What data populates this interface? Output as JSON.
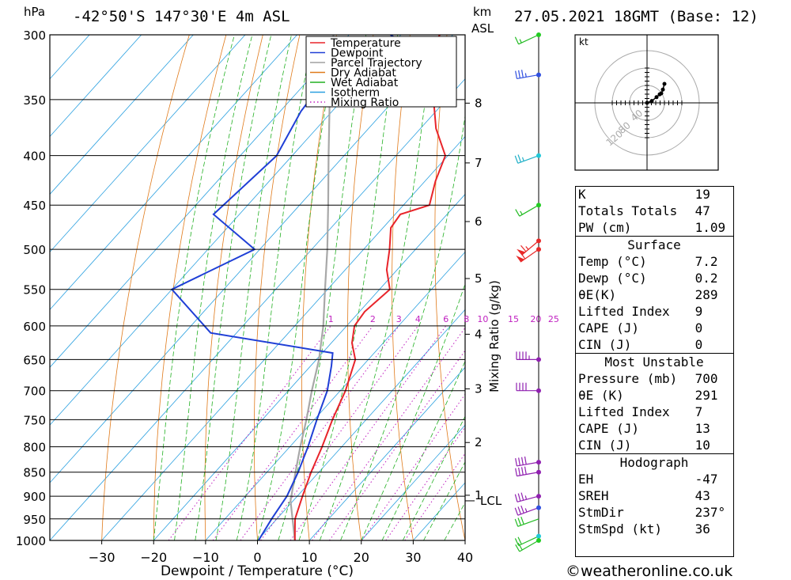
{
  "header": {
    "hpa_label": "hPa",
    "location": "-42°50'S 147°30'E 4m ASL",
    "km_label": "km",
    "asl_label": "ASL",
    "datetime": "27.05.2021 18GMT (Base: 12)"
  },
  "chart_data": {
    "type": "line",
    "subtype": "skew-t log-p sounding",
    "xlabel": "Dewpoint / Temperature (°C)",
    "ylabel": "hPa",
    "y2label": "Mixing Ratio (g/kg)",
    "x_ticks": [
      -30,
      -20,
      -10,
      0,
      10,
      20,
      30,
      40
    ],
    "xlim": [
      -40,
      40
    ],
    "ylim": [
      1000,
      300
    ],
    "y_scale": "log",
    "pressure_ticks": [
      300,
      350,
      400,
      450,
      500,
      550,
      600,
      650,
      700,
      750,
      800,
      850,
      900,
      950,
      1000
    ],
    "km_ticks": [
      {
        "km": "1",
        "p": 898
      },
      {
        "km": "2",
        "p": 792
      },
      {
        "km": "3",
        "p": 697
      },
      {
        "km": "4",
        "p": 612
      },
      {
        "km": "5",
        "p": 536
      },
      {
        "km": "6",
        "p": 468
      },
      {
        "km": "7",
        "p": 407
      },
      {
        "km": "8",
        "p": 353
      }
    ],
    "lcl": {
      "label": "LCL",
      "p": 910
    },
    "mixing_ratio_labels": [
      "1",
      "2",
      "3",
      "4",
      "6",
      "8",
      "10",
      "15",
      "20",
      "25"
    ],
    "mixing_ratio_values": [
      1,
      2,
      3,
      4,
      6,
      8,
      10,
      15,
      20,
      25
    ],
    "legend": {
      "placement": "top-center",
      "entries": [
        {
          "name": "Temperature",
          "color": "#e8242a",
          "style": "solid"
        },
        {
          "name": "Dewpoint",
          "color": "#1f3fd6",
          "style": "solid"
        },
        {
          "name": "Parcel Trajectory",
          "color": "#a0a0a0",
          "style": "solid"
        },
        {
          "name": "Dry Adiabat",
          "color": "#e07a1a",
          "style": "solid"
        },
        {
          "name": "Wet Adiabat",
          "color": "#22b022",
          "style": "solid"
        },
        {
          "name": "Isotherm",
          "color": "#2aa0e0",
          "style": "solid"
        },
        {
          "name": "Mixing Ratio",
          "color": "#c020c0",
          "style": "dotted"
        }
      ]
    },
    "series": [
      {
        "name": "Temperature",
        "points": [
          [
            1000,
            7.2
          ],
          [
            950,
            3.5
          ],
          [
            900,
            1.0
          ],
          [
            850,
            -1.5
          ],
          [
            800,
            -3.8
          ],
          [
            750,
            -6.5
          ],
          [
            700,
            -9.0
          ],
          [
            650,
            -12.5
          ],
          [
            625,
            -16.0
          ],
          [
            600,
            -18.5
          ],
          [
            580,
            -19.0
          ],
          [
            550,
            -18.0
          ],
          [
            525,
            -22.0
          ],
          [
            500,
            -25.0
          ],
          [
            475,
            -28.5
          ],
          [
            460,
            -29.0
          ],
          [
            450,
            -25.0
          ],
          [
            425,
            -28.0
          ],
          [
            400,
            -30.5
          ],
          [
            375,
            -37.0
          ],
          [
            350,
            -42.5
          ],
          [
            325,
            -48.0
          ],
          [
            310,
            -52.0
          ],
          [
            300,
            -52.5
          ]
        ]
      },
      {
        "name": "Dewpoint",
        "points": [
          [
            1000,
            0.2
          ],
          [
            950,
            -1.0
          ],
          [
            900,
            -2.0
          ],
          [
            850,
            -4.0
          ],
          [
            800,
            -6.5
          ],
          [
            750,
            -9.5
          ],
          [
            700,
            -12.5
          ],
          [
            660,
            -16.0
          ],
          [
            640,
            -18.0
          ],
          [
            610,
            -45.0
          ],
          [
            550,
            -60.0
          ],
          [
            500,
            -51.0
          ],
          [
            460,
            -65.0
          ],
          [
            400,
            -63.0
          ],
          [
            360,
            -66.0
          ],
          [
            345,
            -66.5
          ],
          [
            320,
            -53.0
          ],
          [
            310,
            -55.5
          ],
          [
            300,
            -62.0
          ]
        ]
      },
      {
        "name": "Parcel Trajectory",
        "points": [
          [
            1000,
            7.2
          ],
          [
            910,
            -0.5
          ],
          [
            850,
            -4.5
          ],
          [
            800,
            -8.0
          ],
          [
            750,
            -11.5
          ],
          [
            700,
            -15.5
          ],
          [
            650,
            -19.5
          ],
          [
            600,
            -24.5
          ],
          [
            550,
            -30.5
          ],
          [
            500,
            -37.0
          ],
          [
            450,
            -44.5
          ],
          [
            400,
            -53.0
          ],
          [
            350,
            -62.5
          ],
          [
            300,
            -73.0
          ]
        ]
      }
    ],
    "wind_barbs": [
      {
        "p": 1000,
        "dir": 240,
        "speed": 20
      },
      {
        "p": 990,
        "dir": 245,
        "speed": 20
      },
      {
        "p": 950,
        "dir": 250,
        "speed": 30
      },
      {
        "p": 925,
        "dir": 250,
        "speed": 35
      },
      {
        "p": 900,
        "dir": 255,
        "speed": 35
      },
      {
        "p": 850,
        "dir": 260,
        "speed": 40
      },
      {
        "p": 830,
        "dir": 260,
        "speed": 40
      },
      {
        "p": 700,
        "dir": 270,
        "speed": 40
      },
      {
        "p": 650,
        "dir": 270,
        "speed": 45
      },
      {
        "p": 500,
        "dir": 235,
        "speed": 60
      },
      {
        "p": 490,
        "dir": 230,
        "speed": 65
      },
      {
        "p": 450,
        "dir": 240,
        "speed": 15
      },
      {
        "p": 400,
        "dir": 250,
        "speed": 25
      },
      {
        "p": 330,
        "dir": 260,
        "speed": 35
      },
      {
        "p": 300,
        "dir": 245,
        "speed": 15
      }
    ],
    "wind_dot_colors": [
      {
        "p": 300,
        "color": "#22cc22"
      },
      {
        "p": 330,
        "color": "#3050e0"
      },
      {
        "p": 400,
        "color": "#20c8d8"
      },
      {
        "p": 450,
        "color": "#22cc22"
      },
      {
        "p": 490,
        "color": "#e82828"
      },
      {
        "p": 500,
        "color": "#e82828"
      },
      {
        "p": 650,
        "color": "#9020b0"
      },
      {
        "p": 700,
        "color": "#9020b0"
      },
      {
        "p": 830,
        "color": "#9020b0"
      },
      {
        "p": 850,
        "color": "#9020b0"
      },
      {
        "p": 900,
        "color": "#9020b0"
      },
      {
        "p": 925,
        "color": "#3050e0"
      },
      {
        "p": 990,
        "color": "#20c8d8"
      },
      {
        "p": 1000,
        "color": "#22cc22"
      }
    ]
  },
  "hodograph": {
    "unit_label": "kt",
    "rings": [
      40,
      80,
      120
    ],
    "ring_labels": [
      "40",
      "80",
      "120"
    ],
    "points": [
      [
        0,
        0
      ],
      [
        6,
        2
      ],
      [
        12,
        6
      ],
      [
        16,
        9
      ],
      [
        18,
        10
      ],
      [
        20,
        14
      ],
      [
        22,
        20
      ]
    ]
  },
  "indices": {
    "rows": [
      {
        "label": "K",
        "value": "19"
      },
      {
        "label": "Totals Totals",
        "value": "47"
      },
      {
        "label": "PW (cm)",
        "value": "1.09"
      }
    ],
    "surface": {
      "title": "Surface",
      "rows": [
        {
          "label": "Temp (°C)",
          "value": "7.2"
        },
        {
          "label": "Dewp (°C)",
          "value": "0.2"
        },
        {
          "label": "θE(K)",
          "value": "289"
        },
        {
          "label": "Lifted Index",
          "value": "9"
        },
        {
          "label": "CAPE (J)",
          "value": "0"
        },
        {
          "label": "CIN (J)",
          "value": "0"
        }
      ]
    },
    "most_unstable": {
      "title": "Most Unstable",
      "rows": [
        {
          "label": "Pressure (mb)",
          "value": "700"
        },
        {
          "label": "θE (K)",
          "value": "291"
        },
        {
          "label": "Lifted Index",
          "value": "7"
        },
        {
          "label": "CAPE (J)",
          "value": "13"
        },
        {
          "label": "CIN (J)",
          "value": "10"
        }
      ]
    },
    "hodograph": {
      "title": "Hodograph",
      "rows": [
        {
          "label": "EH",
          "value": "-47"
        },
        {
          "label": "SREH",
          "value": "43"
        },
        {
          "label": "StmDir",
          "value": "237°"
        },
        {
          "label": "StmSpd (kt)",
          "value": "36"
        }
      ]
    }
  },
  "copyright": "©weatheronline.co.uk"
}
